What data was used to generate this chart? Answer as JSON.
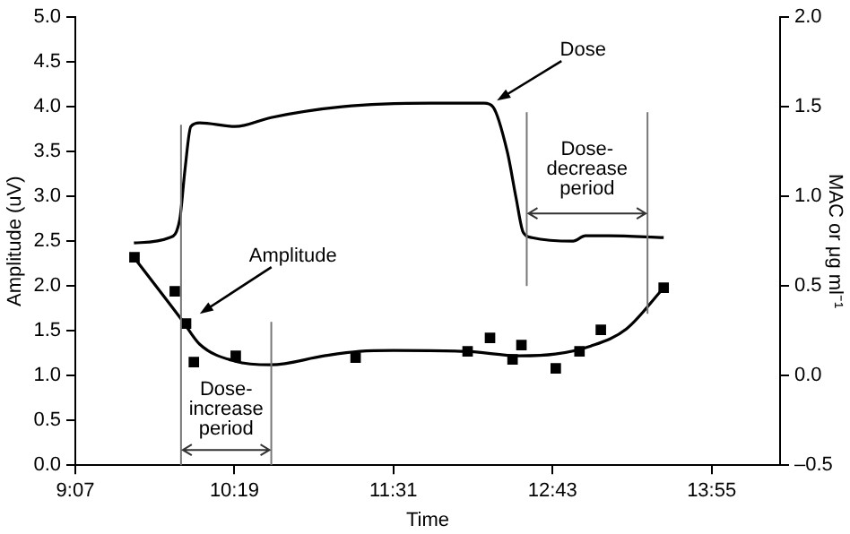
{
  "chart_data": {
    "type": "line",
    "xlabel": "Time",
    "ylabel": "Amplitude (uV)",
    "y2label": "MAC or μg ml⁻¹",
    "xlim": [
      9.1167,
      14.433
    ],
    "xticks": [
      {
        "value": 9.1167,
        "label": "9:07"
      },
      {
        "value": 10.3167,
        "label": "10:19"
      },
      {
        "value": 11.5167,
        "label": "11:31"
      },
      {
        "value": 12.7167,
        "label": "12:43"
      },
      {
        "value": 13.9167,
        "label": "13:55"
      }
    ],
    "ylim": [
      0,
      5
    ],
    "yticks": [
      {
        "value": 0,
        "label": "0.0"
      },
      {
        "value": 0.5,
        "label": "0.5"
      },
      {
        "value": 1,
        "label": "1.0"
      },
      {
        "value": 1.5,
        "label": "1.5"
      },
      {
        "value": 2,
        "label": "2.0"
      },
      {
        "value": 2.5,
        "label": "2.5"
      },
      {
        "value": 3,
        "label": "3.0"
      },
      {
        "value": 3.5,
        "label": "3.5"
      },
      {
        "value": 4,
        "label": "4.0"
      },
      {
        "value": 4.5,
        "label": "4.5"
      },
      {
        "value": 5,
        "label": "5.0"
      }
    ],
    "y2lim": [
      -0.5,
      2
    ],
    "y2ticks": [
      {
        "value": -0.5,
        "label": "–0.5"
      },
      {
        "value": 0,
        "label": "0.0"
      },
      {
        "value": 0.5,
        "label": "0.5"
      },
      {
        "value": 1,
        "label": "1.0"
      },
      {
        "value": 1.5,
        "label": "1.5"
      },
      {
        "value": 2,
        "label": "2.0"
      }
    ],
    "grid": false,
    "legend": false,
    "series": [
      {
        "axis": "y2",
        "color": "#000000",
        "x": [
          9.559,
          9.827,
          9.904,
          9.944,
          9.988,
          10.055,
          10.323,
          10.592,
          11.128,
          11.798,
          12.2,
          12.267,
          12.375,
          12.442,
          12.495,
          12.562,
          12.871,
          12.965,
          13.139,
          13.555
        ],
        "values": [
          0.74,
          0.77,
          0.87,
          1.15,
          1.39,
          1.41,
          1.39,
          1.44,
          1.5,
          1.52,
          1.52,
          1.5,
          1.25,
          0.99,
          0.8,
          0.77,
          0.75,
          0.78,
          0.78,
          0.77
        ]
      },
      {
        "axis": "y",
        "color": "#000000",
        "x": [
          9.559,
          9.921,
          10.055,
          10.323,
          10.592,
          10.994,
          11.262,
          11.517,
          12.066,
          12.469,
          12.737,
          13.005,
          13.273,
          13.555
        ],
        "values": [
          2.32,
          1.62,
          1.35,
          1.16,
          1.12,
          1.22,
          1.27,
          1.28,
          1.27,
          1.22,
          1.24,
          1.33,
          1.52,
          1.98
        ]
      },
      {
        "type": "scatter",
        "axis": "y",
        "color": "#000000",
        "marker": "square",
        "x": [
          9.563,
          9.867,
          9.952,
          10.011,
          10.327,
          11.231,
          12.076,
          12.245,
          12.415,
          12.482,
          12.741,
          12.92,
          13.081,
          13.555
        ],
        "values": [
          2.32,
          1.94,
          1.58,
          1.15,
          1.22,
          1.2,
          1.27,
          1.42,
          1.18,
          1.34,
          1.08,
          1.27,
          1.51,
          1.98
        ]
      }
    ],
    "ref_lines": [
      {
        "axis": "x",
        "value": 9.914,
        "label": "Dose-increase period",
        "color": "#777777"
      },
      {
        "axis": "x",
        "value": 10.595,
        "color": "#777777"
      },
      {
        "axis": "x",
        "value": 12.522,
        "label": "Dose-decrease period",
        "color": "#777777"
      },
      {
        "axis": "x",
        "value": 13.433,
        "color": "#777777"
      }
    ],
    "annotations": [
      {
        "text": "Dose",
        "x": 12.27,
        "y": 4.03
      },
      {
        "text": "Amplitude",
        "x": 10.028,
        "y": 1.65
      }
    ]
  }
}
